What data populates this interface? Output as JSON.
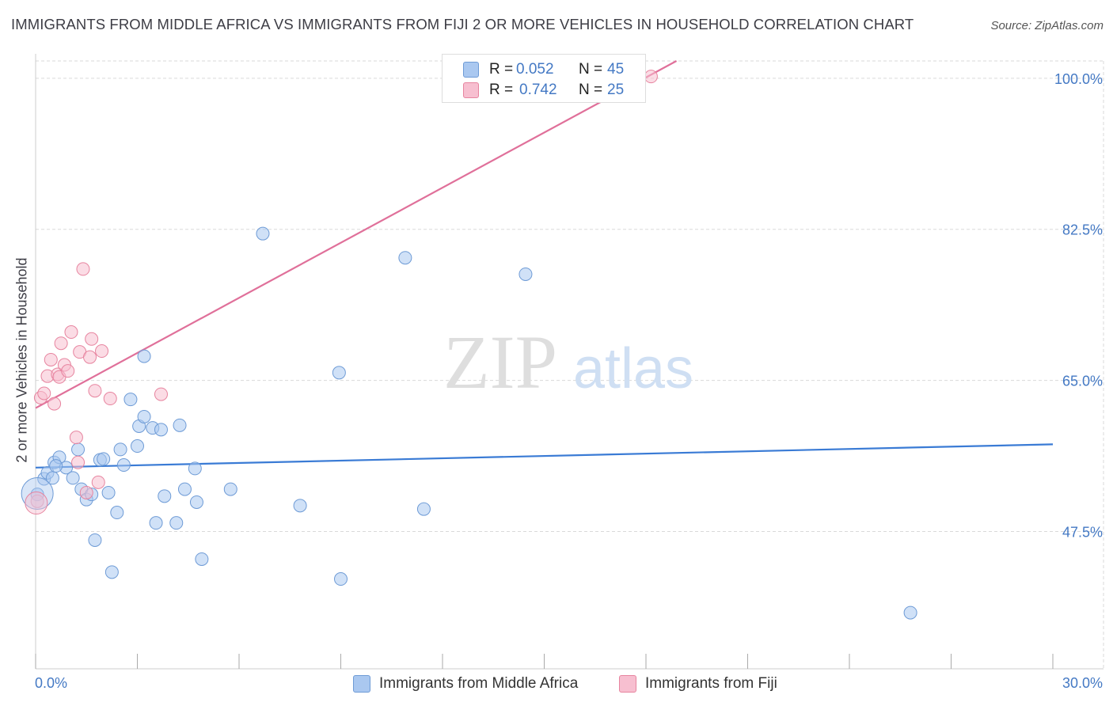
{
  "title": "IMMIGRANTS FROM MIDDLE AFRICA VS IMMIGRANTS FROM FIJI 2 OR MORE VEHICLES IN HOUSEHOLD CORRELATION CHART",
  "source": "Source: ZipAtlas.com",
  "watermark": {
    "zip": "ZIP",
    "atlas": "atlas"
  },
  "legend": {
    "series1": {
      "r_label": "R =",
      "r_value": "0.052",
      "n_label": "N =",
      "n_value": "45"
    },
    "series2": {
      "r_label": "R =",
      "r_value": "0.742",
      "n_label": "N =",
      "n_value": "25"
    }
  },
  "bottom_legend": {
    "series1": "Immigrants from Middle Africa",
    "series2": "Immigrants from Fiji"
  },
  "colors": {
    "series1_fill": "#aac8f0",
    "series1_stroke": "#6e9bd6",
    "series1_line": "#3a7bd5",
    "series2_fill": "#f7bfd0",
    "series2_stroke": "#e7849f",
    "series2_line": "#e0709a",
    "axis_text": "#4479c4",
    "grid": "#d9d9d9"
  },
  "chart_data": {
    "type": "scatter",
    "title": "IMMIGRANTS FROM MIDDLE AFRICA VS IMMIGRANTS FROM FIJI 2 OR MORE VEHICLES IN HOUSEHOLD CORRELATION CHART",
    "xlabel": "",
    "ylabel": "2 or more Vehicles in Household",
    "xlim": [
      0,
      30
    ],
    "ylim": [
      31.6,
      102
    ],
    "x_tick_labels": [
      "0.0%",
      "30.0%"
    ],
    "y_ticks": [
      47.5,
      65.0,
      82.5,
      100.0
    ],
    "y_tick_labels": [
      "47.5%",
      "65.0%",
      "82.5%",
      "100.0%"
    ],
    "series": [
      {
        "name": "Immigrants from Middle Africa",
        "r": 0.052,
        "n": 45,
        "trend": {
          "x": [
            0,
            30
          ],
          "y": [
            54.9,
            57.6
          ]
        },
        "points": [
          [
            0.05,
            51.8
          ],
          [
            0.25,
            53.6
          ],
          [
            0.35,
            54.3
          ],
          [
            0.5,
            53.7
          ],
          [
            0.55,
            55.5
          ],
          [
            0.7,
            56.1
          ],
          [
            0.9,
            54.9
          ],
          [
            1.1,
            53.7
          ],
          [
            1.25,
            57.0
          ],
          [
            1.35,
            52.4
          ],
          [
            1.5,
            51.2
          ],
          [
            1.65,
            51.8
          ],
          [
            1.75,
            46.5
          ],
          [
            1.9,
            55.8
          ],
          [
            2.0,
            55.9
          ],
          [
            2.15,
            52.0
          ],
          [
            2.25,
            42.8
          ],
          [
            2.4,
            49.7
          ],
          [
            2.5,
            57.0
          ],
          [
            2.6,
            55.2
          ],
          [
            2.8,
            62.8
          ],
          [
            3.0,
            57.4
          ],
          [
            3.05,
            59.7
          ],
          [
            3.2,
            60.8
          ],
          [
            3.2,
            67.8
          ],
          [
            3.45,
            59.5
          ],
          [
            3.7,
            59.3
          ],
          [
            3.55,
            48.5
          ],
          [
            3.8,
            51.6
          ],
          [
            4.15,
            48.5
          ],
          [
            4.25,
            59.8
          ],
          [
            4.4,
            52.4
          ],
          [
            4.7,
            54.8
          ],
          [
            4.75,
            50.9
          ],
          [
            4.9,
            44.3
          ],
          [
            5.75,
            52.4
          ],
          [
            6.7,
            82.0
          ],
          [
            7.8,
            50.5
          ],
          [
            8.95,
            65.9
          ],
          [
            9.0,
            42.0
          ],
          [
            10.9,
            79.2
          ],
          [
            11.45,
            50.1
          ],
          [
            14.45,
            77.3
          ],
          [
            25.8,
            38.1
          ],
          [
            0.6,
            55.1
          ]
        ]
      },
      {
        "name": "Immigrants from Fiji",
        "r": 0.742,
        "n": 25,
        "trend": {
          "x": [
            0,
            18.9
          ],
          "y": [
            61.8,
            102
          ]
        },
        "points": [
          [
            0.05,
            51.0
          ],
          [
            0.15,
            63.0
          ],
          [
            0.25,
            63.5
          ],
          [
            0.35,
            65.5
          ],
          [
            0.45,
            67.4
          ],
          [
            0.55,
            62.3
          ],
          [
            0.65,
            65.7
          ],
          [
            0.7,
            65.4
          ],
          [
            0.75,
            69.3
          ],
          [
            0.85,
            66.8
          ],
          [
            0.95,
            66.1
          ],
          [
            1.05,
            70.6
          ],
          [
            1.2,
            58.4
          ],
          [
            1.25,
            55.5
          ],
          [
            1.3,
            68.3
          ],
          [
            1.4,
            77.9
          ],
          [
            1.5,
            52.0
          ],
          [
            1.6,
            67.7
          ],
          [
            1.65,
            69.8
          ],
          [
            1.75,
            63.8
          ],
          [
            1.85,
            53.2
          ],
          [
            1.95,
            68.4
          ],
          [
            2.2,
            62.9
          ],
          [
            3.7,
            63.4
          ],
          [
            18.15,
            100.2
          ]
        ]
      }
    ]
  }
}
